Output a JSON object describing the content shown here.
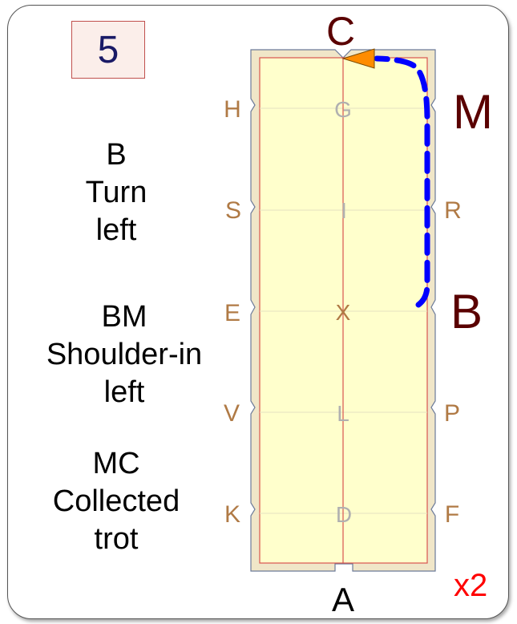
{
  "card": {
    "number": "5",
    "repeat": "x2"
  },
  "instructions": [
    {
      "lines": [
        "B",
        "Turn",
        "left"
      ]
    },
    {
      "lines": [
        "BM",
        "Shoulder-in",
        "left"
      ]
    },
    {
      "lines": [
        "MC",
        "Collected",
        "trot"
      ]
    }
  ],
  "arena": {
    "top_letter": "C",
    "bottom_letter": "A",
    "highlight_letters": [
      "M",
      "B"
    ],
    "left_letters": [
      "H",
      "S",
      "E",
      "V",
      "K"
    ],
    "right_letters": [
      "M",
      "R",
      "B",
      "P",
      "F"
    ],
    "center_letters": [
      "G",
      "I",
      "X",
      "L",
      "D"
    ],
    "colors": {
      "arena_fill": "#ffffcc",
      "border_fill": "#f0e6c8",
      "marker_letters": "#b07a45",
      "highlight_letters": "#5a0000",
      "center_letters": "#b0b0b0",
      "center_x": "#b07a45",
      "route": "#0000ff",
      "arrow": "#ff8c00"
    }
  }
}
